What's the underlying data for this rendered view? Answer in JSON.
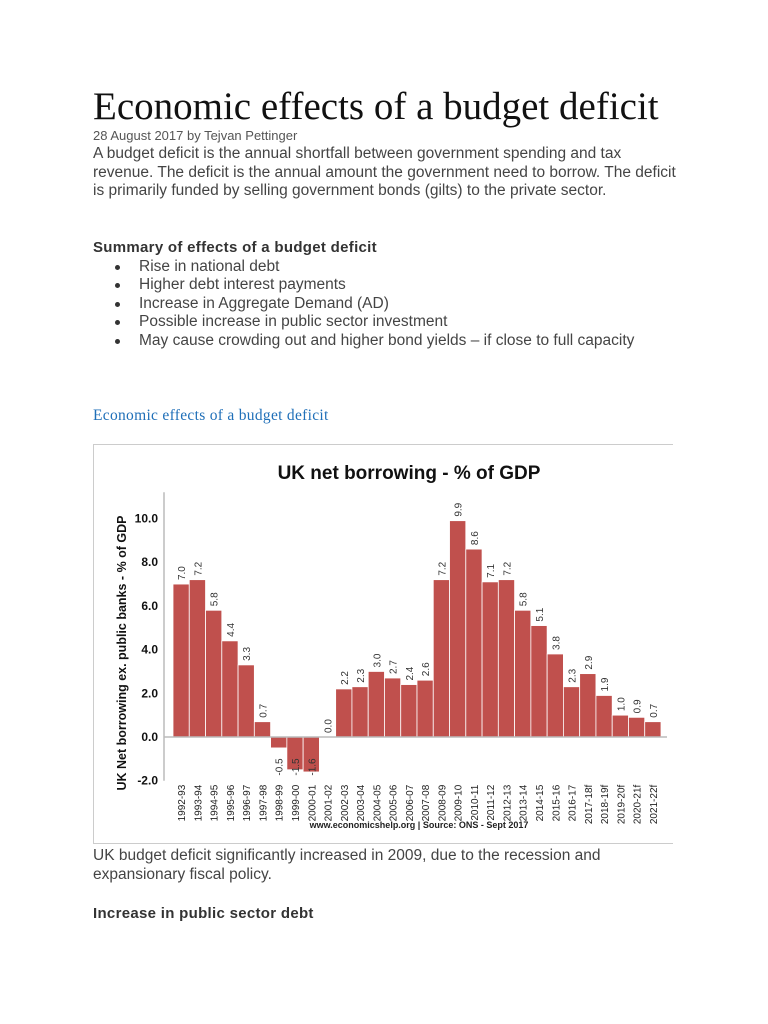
{
  "article": {
    "title": "Economic effects of a budget deficit",
    "meta": "28 August 2017 by Tejvan Pettinger",
    "intro": "A budget deficit is the annual shortfall between government spending and tax revenue. The deficit is the annual amount the government need to borrow. The deficit is primarily funded by selling government bonds (gilts) to the private sector.",
    "summary_heading": "Summary of effects of a budget deficit",
    "bullets": [
      "Rise in national debt",
      "Higher debt interest payments",
      "Increase in Aggregate Demand (AD)",
      "Possible increase in public sector investment",
      "May cause crowding out and higher bond yields – if close to full capacity"
    ],
    "subheading": "Economic effects of a budget deficit",
    "caption": "UK budget deficit significantly increased in 2009, due to the recession and expansionary fiscal policy.",
    "section_heading": "Increase in public sector debt"
  },
  "chart_data": {
    "type": "bar",
    "title": "UK net borrowing - % of GDP",
    "ylabel": "UK Net borrowing ex. public banks - % of GDP",
    "xlabel": "",
    "source": "www.economicshelp.org | Source: ONS  - Sept 2017",
    "ylim": [
      -2.0,
      11.0
    ],
    "yticks": [
      "-2.0",
      "0.0",
      "2.0",
      "4.0",
      "6.0",
      "8.0",
      "10.0"
    ],
    "grid": false,
    "bar_color": "#c0504d",
    "categories": [
      "1992-93",
      "1993-94",
      "1994-95",
      "1995-96",
      "1996-97",
      "1997-98",
      "1998-99",
      "1999-00",
      "2000-01",
      "2001-02",
      "2002-03",
      "2003-04",
      "2004-05",
      "2005-06",
      "2006-07",
      "2007-08",
      "2008-09",
      "2009-10",
      "2010-11",
      "2011-12",
      "2012-13",
      "2013-14",
      "2014-15",
      "2015-16",
      "2016-17",
      "2017-18f",
      "2018-19f",
      "2019-20f",
      "2020-21f",
      "2021-22f"
    ],
    "values": [
      7.0,
      7.2,
      5.8,
      4.4,
      3.3,
      0.7,
      -0.5,
      -1.5,
      -1.6,
      0.0,
      2.2,
      2.3,
      3.0,
      2.7,
      2.4,
      2.6,
      7.2,
      9.9,
      8.6,
      7.1,
      7.2,
      5.8,
      5.1,
      3.8,
      2.3,
      2.9,
      1.9,
      1.0,
      0.9,
      0.7
    ],
    "data_labels": [
      "7.0",
      "7.2",
      "5.8",
      "4.4",
      "3.3",
      "0.7",
      "-0.5",
      "-1.5",
      "-1.6",
      "0.0",
      "2.2",
      "2.3",
      "3.0",
      "2.7",
      "2.4",
      "2.6",
      "7.2",
      "9.9",
      "8.6",
      "7.1",
      "7.2",
      "5.8",
      "5.1",
      "3.8",
      "2.3",
      "2.9",
      "1.9",
      "1.0",
      "0.9",
      "0.7"
    ]
  }
}
